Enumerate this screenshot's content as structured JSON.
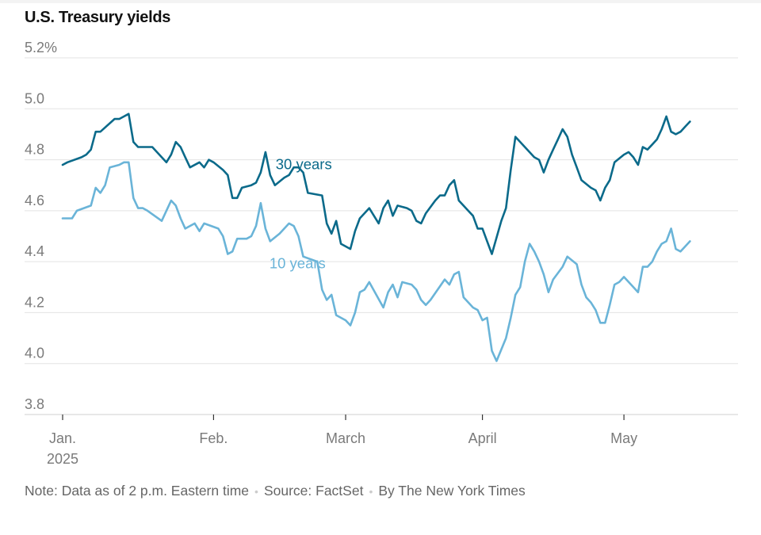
{
  "chart_data": {
    "type": "line",
    "title": "U.S. Treasury yields",
    "ylim": [
      3.8,
      5.2
    ],
    "y_ticks": [
      "3.8",
      "4.0",
      "4.2",
      "4.4",
      "4.6",
      "4.8",
      "5.0",
      "5.2%"
    ],
    "y_tick_values": [
      3.8,
      4.0,
      4.2,
      4.4,
      4.6,
      4.8,
      5.0,
      5.2
    ],
    "x_range": [
      "2025-01-02",
      "2025-05-23"
    ],
    "x_ticks": [
      {
        "date": "2025-01-02",
        "label": "Jan.",
        "sublabel": "2025"
      },
      {
        "date": "2025-02-03",
        "label": "Feb.",
        "sublabel": ""
      },
      {
        "date": "2025-03-03",
        "label": "March",
        "sublabel": ""
      },
      {
        "date": "2025-04-01",
        "label": "April",
        "sublabel": ""
      },
      {
        "date": "2025-05-01",
        "label": "May",
        "sublabel": ""
      }
    ],
    "grid": true,
    "series": [
      {
        "name": "30 years",
        "color": "#0b6a8a",
        "points": [
          [
            "2025-01-02",
            4.78
          ],
          [
            "2025-01-03",
            4.79
          ],
          [
            "2025-01-06",
            4.81
          ],
          [
            "2025-01-07",
            4.82
          ],
          [
            "2025-01-08",
            4.84
          ],
          [
            "2025-01-09",
            4.91
          ],
          [
            "2025-01-10",
            4.91
          ],
          [
            "2025-01-13",
            4.96
          ],
          [
            "2025-01-14",
            4.96
          ],
          [
            "2025-01-15",
            4.97
          ],
          [
            "2025-01-16",
            4.98
          ],
          [
            "2025-01-17",
            4.87
          ],
          [
            "2025-01-18",
            4.85
          ],
          [
            "2025-01-21",
            4.85
          ],
          [
            "2025-01-22",
            4.83
          ],
          [
            "2025-01-24",
            4.79
          ],
          [
            "2025-01-25",
            4.82
          ],
          [
            "2025-01-26",
            4.87
          ],
          [
            "2025-01-27",
            4.85
          ],
          [
            "2025-01-28",
            4.81
          ],
          [
            "2025-01-29",
            4.77
          ],
          [
            "2025-01-31",
            4.79
          ],
          [
            "2025-02-01",
            4.77
          ],
          [
            "2025-02-02",
            4.8
          ],
          [
            "2025-02-03",
            4.79
          ],
          [
            "2025-02-05",
            4.76
          ],
          [
            "2025-02-06",
            4.74
          ],
          [
            "2025-02-07",
            4.65
          ],
          [
            "2025-02-08",
            4.65
          ],
          [
            "2025-02-09",
            4.69
          ],
          [
            "2025-02-11",
            4.7
          ],
          [
            "2025-02-12",
            4.71
          ],
          [
            "2025-02-13",
            4.75
          ],
          [
            "2025-02-14",
            4.83
          ],
          [
            "2025-02-15",
            4.74
          ],
          [
            "2025-02-16",
            4.7
          ],
          [
            "2025-02-18",
            4.73
          ],
          [
            "2025-02-19",
            4.74
          ],
          [
            "2025-02-20",
            4.77
          ],
          [
            "2025-02-21",
            4.77
          ],
          [
            "2025-02-22",
            4.75
          ],
          [
            "2025-02-23",
            4.67
          ],
          [
            "2025-02-26",
            4.66
          ],
          [
            "2025-02-27",
            4.55
          ],
          [
            "2025-02-28",
            4.51
          ],
          [
            "2025-03-01",
            4.56
          ],
          [
            "2025-03-02",
            4.47
          ],
          [
            "2025-03-04",
            4.45
          ],
          [
            "2025-03-05",
            4.52
          ],
          [
            "2025-03-06",
            4.57
          ],
          [
            "2025-03-08",
            4.61
          ],
          [
            "2025-03-10",
            4.55
          ],
          [
            "2025-03-11",
            4.61
          ],
          [
            "2025-03-12",
            4.64
          ],
          [
            "2025-03-13",
            4.58
          ],
          [
            "2025-03-14",
            4.62
          ],
          [
            "2025-03-16",
            4.61
          ],
          [
            "2025-03-17",
            4.6
          ],
          [
            "2025-03-18",
            4.56
          ],
          [
            "2025-03-19",
            4.55
          ],
          [
            "2025-03-20",
            4.59
          ],
          [
            "2025-03-22",
            4.64
          ],
          [
            "2025-03-23",
            4.66
          ],
          [
            "2025-03-24",
            4.66
          ],
          [
            "2025-03-25",
            4.7
          ],
          [
            "2025-03-26",
            4.72
          ],
          [
            "2025-03-27",
            4.64
          ],
          [
            "2025-03-29",
            4.6
          ],
          [
            "2025-03-30",
            4.58
          ],
          [
            "2025-03-31",
            4.53
          ],
          [
            "2025-04-01",
            4.53
          ],
          [
            "2025-04-02",
            4.48
          ],
          [
            "2025-04-03",
            4.43
          ],
          [
            "2025-04-05",
            4.56
          ],
          [
            "2025-04-06",
            4.61
          ],
          [
            "2025-04-07",
            4.76
          ],
          [
            "2025-04-08",
            4.89
          ],
          [
            "2025-04-10",
            4.85
          ],
          [
            "2025-04-12",
            4.81
          ],
          [
            "2025-04-13",
            4.8
          ],
          [
            "2025-04-14",
            4.75
          ],
          [
            "2025-04-15",
            4.8
          ],
          [
            "2025-04-16",
            4.84
          ],
          [
            "2025-04-17",
            4.88
          ],
          [
            "2025-04-18",
            4.92
          ],
          [
            "2025-04-19",
            4.89
          ],
          [
            "2025-04-20",
            4.82
          ],
          [
            "2025-04-21",
            4.77
          ],
          [
            "2025-04-22",
            4.72
          ],
          [
            "2025-04-24",
            4.69
          ],
          [
            "2025-04-25",
            4.68
          ],
          [
            "2025-04-26",
            4.64
          ],
          [
            "2025-04-27",
            4.69
          ],
          [
            "2025-04-28",
            4.72
          ],
          [
            "2025-04-29",
            4.79
          ],
          [
            "2025-05-01",
            4.82
          ],
          [
            "2025-05-02",
            4.83
          ],
          [
            "2025-05-03",
            4.81
          ],
          [
            "2025-05-04",
            4.78
          ],
          [
            "2025-05-05",
            4.85
          ],
          [
            "2025-05-06",
            4.84
          ],
          [
            "2025-05-07",
            4.86
          ],
          [
            "2025-05-08",
            4.88
          ],
          [
            "2025-05-09",
            4.92
          ],
          [
            "2025-05-10",
            4.97
          ],
          [
            "2025-05-11",
            4.91
          ],
          [
            "2025-05-12",
            4.9
          ],
          [
            "2025-05-13",
            4.91
          ],
          [
            "2025-05-14",
            4.93
          ],
          [
            "2025-05-15",
            4.95
          ]
        ]
      },
      {
        "name": "10 years",
        "color": "#6ab4d8",
        "points": [
          [
            "2025-01-02",
            4.57
          ],
          [
            "2025-01-03",
            4.57
          ],
          [
            "2025-01-04",
            4.57
          ],
          [
            "2025-01-05",
            4.6
          ],
          [
            "2025-01-08",
            4.62
          ],
          [
            "2025-01-09",
            4.69
          ],
          [
            "2025-01-10",
            4.67
          ],
          [
            "2025-01-11",
            4.7
          ],
          [
            "2025-01-12",
            4.77
          ],
          [
            "2025-01-14",
            4.78
          ],
          [
            "2025-01-15",
            4.79
          ],
          [
            "2025-01-16",
            4.79
          ],
          [
            "2025-01-17",
            4.65
          ],
          [
            "2025-01-18",
            4.61
          ],
          [
            "2025-01-19",
            4.61
          ],
          [
            "2025-01-20",
            4.6
          ],
          [
            "2025-01-23",
            4.56
          ],
          [
            "2025-01-24",
            4.6
          ],
          [
            "2025-01-25",
            4.64
          ],
          [
            "2025-01-26",
            4.62
          ],
          [
            "2025-01-27",
            4.57
          ],
          [
            "2025-01-28",
            4.53
          ],
          [
            "2025-01-30",
            4.55
          ],
          [
            "2025-01-31",
            4.52
          ],
          [
            "2025-02-01",
            4.55
          ],
          [
            "2025-02-04",
            4.53
          ],
          [
            "2025-02-05",
            4.5
          ],
          [
            "2025-02-06",
            4.43
          ],
          [
            "2025-02-07",
            4.44
          ],
          [
            "2025-02-08",
            4.49
          ],
          [
            "2025-02-10",
            4.49
          ],
          [
            "2025-02-11",
            4.5
          ],
          [
            "2025-02-12",
            4.54
          ],
          [
            "2025-02-13",
            4.63
          ],
          [
            "2025-02-14",
            4.53
          ],
          [
            "2025-02-15",
            4.48
          ],
          [
            "2025-02-17",
            4.51
          ],
          [
            "2025-02-19",
            4.55
          ],
          [
            "2025-02-20",
            4.54
          ],
          [
            "2025-02-21",
            4.5
          ],
          [
            "2025-02-22",
            4.42
          ],
          [
            "2025-02-25",
            4.4
          ],
          [
            "2025-02-26",
            4.29
          ],
          [
            "2025-02-27",
            4.25
          ],
          [
            "2025-02-28",
            4.27
          ],
          [
            "2025-03-01",
            4.19
          ],
          [
            "2025-03-03",
            4.17
          ],
          [
            "2025-03-04",
            4.15
          ],
          [
            "2025-03-05",
            4.2
          ],
          [
            "2025-03-06",
            4.28
          ],
          [
            "2025-03-07",
            4.29
          ],
          [
            "2025-03-08",
            4.32
          ],
          [
            "2025-03-11",
            4.22
          ],
          [
            "2025-03-12",
            4.28
          ],
          [
            "2025-03-13",
            4.31
          ],
          [
            "2025-03-14",
            4.26
          ],
          [
            "2025-03-15",
            4.32
          ],
          [
            "2025-03-17",
            4.31
          ],
          [
            "2025-03-18",
            4.29
          ],
          [
            "2025-03-19",
            4.25
          ],
          [
            "2025-03-20",
            4.23
          ],
          [
            "2025-03-21",
            4.25
          ],
          [
            "2025-03-24",
            4.33
          ],
          [
            "2025-03-25",
            4.31
          ],
          [
            "2025-03-26",
            4.35
          ],
          [
            "2025-03-27",
            4.36
          ],
          [
            "2025-03-28",
            4.26
          ],
          [
            "2025-03-30",
            4.22
          ],
          [
            "2025-03-31",
            4.21
          ],
          [
            "2025-04-01",
            4.17
          ],
          [
            "2025-04-02",
            4.18
          ],
          [
            "2025-04-03",
            4.05
          ],
          [
            "2025-04-04",
            4.01
          ],
          [
            "2025-04-06",
            4.1
          ],
          [
            "2025-04-07",
            4.18
          ],
          [
            "2025-04-08",
            4.27
          ],
          [
            "2025-04-09",
            4.3
          ],
          [
            "2025-04-10",
            4.4
          ],
          [
            "2025-04-11",
            4.47
          ],
          [
            "2025-04-12",
            4.44
          ],
          [
            "2025-04-13",
            4.4
          ],
          [
            "2025-04-14",
            4.35
          ],
          [
            "2025-04-15",
            4.28
          ],
          [
            "2025-04-16",
            4.33
          ],
          [
            "2025-04-18",
            4.38
          ],
          [
            "2025-04-19",
            4.42
          ],
          [
            "2025-04-21",
            4.39
          ],
          [
            "2025-04-22",
            4.31
          ],
          [
            "2025-04-23",
            4.26
          ],
          [
            "2025-04-24",
            4.24
          ],
          [
            "2025-04-25",
            4.21
          ],
          [
            "2025-04-26",
            4.16
          ],
          [
            "2025-04-27",
            4.16
          ],
          [
            "2025-04-28",
            4.23
          ],
          [
            "2025-04-29",
            4.31
          ],
          [
            "2025-04-30",
            4.32
          ],
          [
            "2025-05-01",
            4.34
          ],
          [
            "2025-05-03",
            4.3
          ],
          [
            "2025-05-04",
            4.28
          ],
          [
            "2025-05-05",
            4.38
          ],
          [
            "2025-05-06",
            4.38
          ],
          [
            "2025-05-07",
            4.4
          ],
          [
            "2025-05-08",
            4.44
          ],
          [
            "2025-05-09",
            4.47
          ],
          [
            "2025-05-10",
            4.48
          ],
          [
            "2025-05-11",
            4.53
          ],
          [
            "2025-05-12",
            4.45
          ],
          [
            "2025-05-13",
            4.44
          ],
          [
            "2025-05-14",
            4.46
          ],
          [
            "2025-05-15",
            4.48
          ]
        ]
      }
    ],
    "source_note": {
      "note": "Note: Data as of 2 p.m. Eastern time",
      "source": "Source: FactSet",
      "credit": "By The New York Times"
    }
  }
}
